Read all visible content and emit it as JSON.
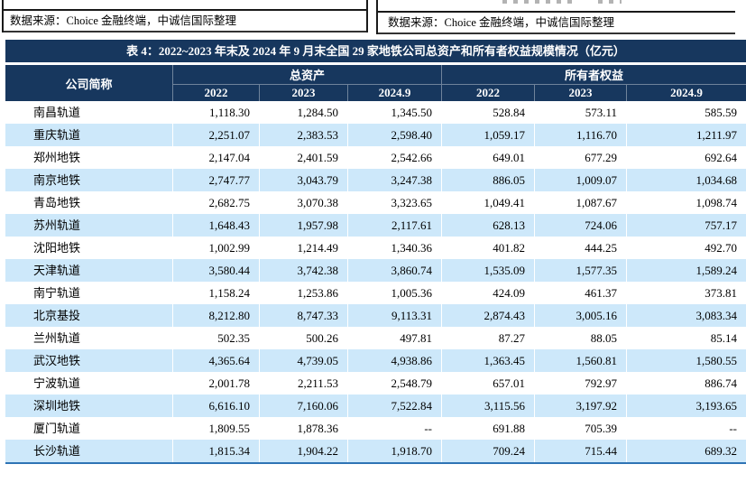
{
  "sources": {
    "left": "数据来源：Choice 金融终端，中诚信国际整理",
    "right": "数据来源：Choice 金融终端，中诚信国际整理"
  },
  "table": {
    "title": "表 4：2022~2023 年末及 2024 年 9 月末全国 29 家地铁公司总资产和所有者权益规模情况（亿元）",
    "columns": {
      "company": "公司简称",
      "group1": "总资产",
      "group2": "所有者权益",
      "years": [
        "2022",
        "2023",
        "2024.9"
      ]
    },
    "rows": [
      {
        "company": "南昌轨道",
        "values": [
          "1,118.30",
          "1,284.50",
          "1,345.50",
          "528.84",
          "573.11",
          "585.59"
        ]
      },
      {
        "company": "重庆轨道",
        "values": [
          "2,251.07",
          "2,383.53",
          "2,598.40",
          "1,059.17",
          "1,116.70",
          "1,211.97"
        ]
      },
      {
        "company": "郑州地铁",
        "values": [
          "2,147.04",
          "2,401.59",
          "2,542.66",
          "649.01",
          "677.29",
          "692.64"
        ]
      },
      {
        "company": "南京地铁",
        "values": [
          "2,747.77",
          "3,043.79",
          "3,247.38",
          "886.05",
          "1,009.07",
          "1,034.68"
        ]
      },
      {
        "company": "青岛地铁",
        "values": [
          "2,682.75",
          "3,070.38",
          "3,323.65",
          "1,049.41",
          "1,087.67",
          "1,098.74"
        ]
      },
      {
        "company": "苏州轨道",
        "values": [
          "1,648.43",
          "1,957.98",
          "2,117.61",
          "628.13",
          "724.06",
          "757.17"
        ]
      },
      {
        "company": "沈阳地铁",
        "values": [
          "1,002.99",
          "1,214.49",
          "1,340.36",
          "401.82",
          "444.25",
          "492.70"
        ]
      },
      {
        "company": "天津轨道",
        "values": [
          "3,580.44",
          "3,742.38",
          "3,860.74",
          "1,535.09",
          "1,577.35",
          "1,589.24"
        ]
      },
      {
        "company": "南宁轨道",
        "values": [
          "1,158.24",
          "1,253.86",
          "1,005.36",
          "424.09",
          "461.37",
          "373.81"
        ]
      },
      {
        "company": "北京基投",
        "values": [
          "8,212.80",
          "8,747.33",
          "9,113.31",
          "2,874.43",
          "3,005.16",
          "3,083.34"
        ]
      },
      {
        "company": "兰州轨道",
        "values": [
          "502.35",
          "500.26",
          "497.81",
          "87.27",
          "88.05",
          "85.14"
        ]
      },
      {
        "company": "武汉地铁",
        "values": [
          "4,365.64",
          "4,739.05",
          "4,938.86",
          "1,363.45",
          "1,560.81",
          "1,580.55"
        ]
      },
      {
        "company": "宁波轨道",
        "values": [
          "2,001.78",
          "2,211.53",
          "2,548.79",
          "657.01",
          "792.97",
          "886.74"
        ]
      },
      {
        "company": "深圳地铁",
        "values": [
          "6,616.10",
          "7,160.06",
          "7,522.84",
          "3,115.56",
          "3,197.92",
          "3,193.65"
        ]
      },
      {
        "company": "厦门轨道",
        "values": [
          "1,809.55",
          "1,878.36",
          "--",
          "691.88",
          "705.39",
          "--"
        ]
      },
      {
        "company": "长沙轨道",
        "values": [
          "1,815.34",
          "1,904.22",
          "1,918.70",
          "709.24",
          "715.44",
          "689.32"
        ]
      }
    ]
  },
  "colors": {
    "header_navy": "#17375E",
    "row_alt_blue": "#CDE8FA",
    "table_bottom_border": "#2E74B5"
  }
}
